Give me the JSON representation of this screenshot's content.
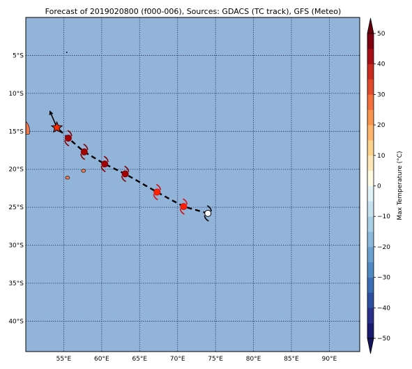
{
  "title": "Forecast of 2019020800 (f000-006), Sources: GDACS (TC track), GFS (Meteo)",
  "map": {
    "ocean_color": "#92b4d9",
    "lon_range": [
      50,
      94
    ],
    "lat_range": [
      -44,
      0
    ],
    "lon_ticks": [
      {
        "value": 55,
        "label": "55°E"
      },
      {
        "value": 60,
        "label": "60°E"
      },
      {
        "value": 65,
        "label": "65°E"
      },
      {
        "value": 70,
        "label": "70°E"
      },
      {
        "value": 75,
        "label": "75°E"
      },
      {
        "value": 80,
        "label": "80°E"
      },
      {
        "value": 85,
        "label": "85°E"
      },
      {
        "value": 90,
        "label": "90°E"
      }
    ],
    "lat_ticks": [
      {
        "value": -5,
        "label": "5°S"
      },
      {
        "value": -10,
        "label": "10°S"
      },
      {
        "value": -15,
        "label": "15°S"
      },
      {
        "value": -20,
        "label": "20°S"
      },
      {
        "value": -25,
        "label": "25°S"
      },
      {
        "value": -30,
        "label": "30°S"
      },
      {
        "value": -35,
        "label": "35°S"
      },
      {
        "value": -40,
        "label": "40°S"
      }
    ]
  },
  "track": {
    "line_color": "#000000",
    "current_position": {
      "lon": 54.1,
      "lat": -14.5,
      "marker": "star-icon",
      "color": "#ff2a00"
    },
    "start_position": {
      "lon": 74.0,
      "lat": -25.8,
      "marker": "open-circle-icon"
    },
    "points": [
      {
        "lon": 74.0,
        "lat": -25.8,
        "color": "#ffffff"
      },
      {
        "lon": 70.8,
        "lat": -24.9,
        "color": "#ff2200"
      },
      {
        "lon": 67.3,
        "lat": -23.0,
        "color": "#ff2200"
      },
      {
        "lon": 63.1,
        "lat": -20.6,
        "color": "#a00000"
      },
      {
        "lon": 60.4,
        "lat": -19.3,
        "color": "#a00000"
      },
      {
        "lon": 57.7,
        "lat": -17.7,
        "color": "#a00000"
      },
      {
        "lon": 55.6,
        "lat": -15.9,
        "color": "#a00000"
      },
      {
        "lon": 54.1,
        "lat": -14.5,
        "color": "#ff2a00"
      }
    ],
    "past_heading": [
      {
        "lon": 54.1,
        "lat": -14.5
      },
      {
        "lon": 53.2,
        "lat": -12.4
      }
    ]
  },
  "land": [
    {
      "name": "Madagascar coast",
      "lon": 50.2,
      "lat": -14.8,
      "color": "#f07a50"
    },
    {
      "name": "Mauritius",
      "lon": 57.6,
      "lat": -20.2,
      "color": "#f07a50"
    },
    {
      "name": "Reunion",
      "lon": 55.5,
      "lat": -21.1,
      "color": "#f07a50"
    },
    {
      "name": "Seychelles",
      "lon": 55.4,
      "lat": -4.6,
      "color": "#000000"
    }
  ],
  "colorbar": {
    "label": "Max Temperature (°C)",
    "min": -50,
    "max": 50,
    "ticks": [
      {
        "value": 50,
        "label": "50"
      },
      {
        "value": 40,
        "label": "40"
      },
      {
        "value": 30,
        "label": "30"
      },
      {
        "value": 20,
        "label": "20"
      },
      {
        "value": 10,
        "label": "10"
      },
      {
        "value": 0,
        "label": "0"
      },
      {
        "value": -10,
        "label": "−10"
      },
      {
        "value": -20,
        "label": "−20"
      },
      {
        "value": -30,
        "label": "−30"
      },
      {
        "value": -40,
        "label": "−40"
      },
      {
        "value": -50,
        "label": "−50"
      }
    ],
    "levels": [
      {
        "from": -50,
        "to": -45,
        "color": "#1a1a6e"
      },
      {
        "from": -45,
        "to": -40,
        "color": "#2a2f8c"
      },
      {
        "from": -40,
        "to": -35,
        "color": "#2d4fa0"
      },
      {
        "from": -35,
        "to": -30,
        "color": "#3a6db3"
      },
      {
        "from": -30,
        "to": -25,
        "color": "#4f8ac2"
      },
      {
        "from": -25,
        "to": -20,
        "color": "#6ba2cf"
      },
      {
        "from": -20,
        "to": -15,
        "color": "#8ab9dc"
      },
      {
        "from": -15,
        "to": -10,
        "color": "#a9cfe6"
      },
      {
        "from": -10,
        "to": -5,
        "color": "#c6e2ef"
      },
      {
        "from": -5,
        "to": 0,
        "color": "#e2f3f8"
      },
      {
        "from": 0,
        "to": 5,
        "color": "#fefbe2"
      },
      {
        "from": 5,
        "to": 10,
        "color": "#fee8b8"
      },
      {
        "from": 10,
        "to": 15,
        "color": "#fdd28d"
      },
      {
        "from": 15,
        "to": 20,
        "color": "#fcb56b"
      },
      {
        "from": 20,
        "to": 25,
        "color": "#f9954e"
      },
      {
        "from": 25,
        "to": 30,
        "color": "#f1703b"
      },
      {
        "from": 30,
        "to": 35,
        "color": "#e14a2a"
      },
      {
        "from": 35,
        "to": 40,
        "color": "#c92a1d"
      },
      {
        "from": 40,
        "to": 45,
        "color": "#a50f15"
      },
      {
        "from": 45,
        "to": 50,
        "color": "#7f0011"
      }
    ],
    "under_color": "#14145a",
    "over_color": "#67000d"
  }
}
